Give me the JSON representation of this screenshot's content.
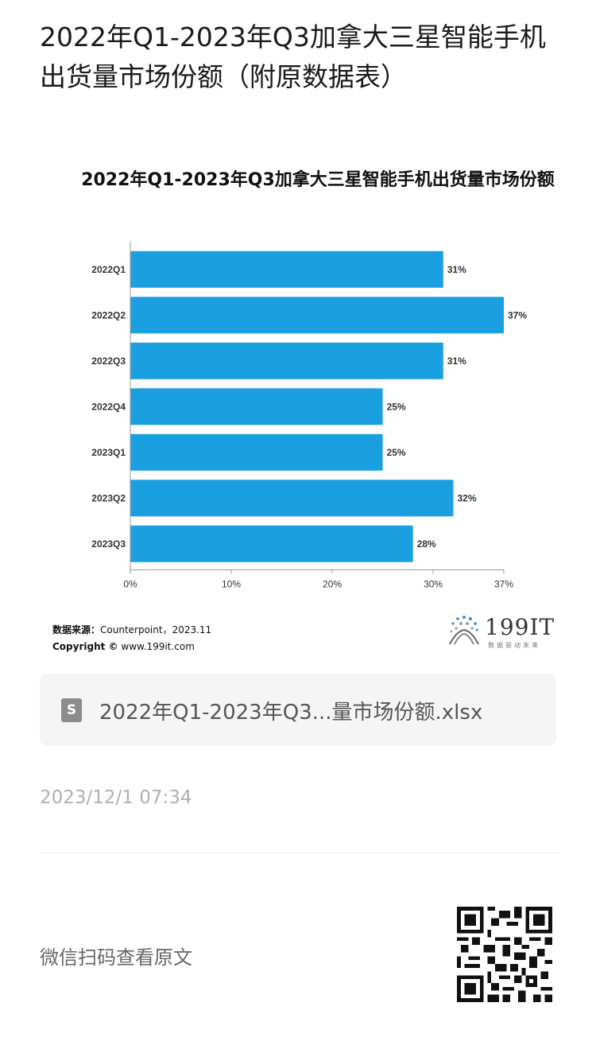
{
  "article": {
    "title": "2022年Q1-2023年Q3加拿大三星智能手机出货量市场份额（附原数据表）"
  },
  "chart": {
    "footer_source_label": "数据来源：",
    "footer_source_value": "Counterpoint，2023.11",
    "footer_copyright_label": "Copyright ©",
    "footer_copyright_value": "www.199it.com",
    "logo_text": "199IT",
    "logo_sub": "数据驱动未来"
  },
  "chart_data": {
    "type": "bar",
    "orientation": "horizontal",
    "title": "2022年Q1-2023年Q3加拿大三星智能手机出货量市场份额",
    "categories": [
      "2022Q1",
      "2022Q2",
      "2022Q3",
      "2022Q4",
      "2023Q1",
      "2023Q2",
      "2023Q3"
    ],
    "values": [
      31,
      37,
      31,
      25,
      25,
      32,
      28
    ],
    "value_labels": [
      "31%",
      "37%",
      "31%",
      "25%",
      "25%",
      "32%",
      "28%"
    ],
    "xticks": [
      "0%",
      "10%",
      "20%",
      "30%",
      "37%"
    ],
    "xtick_values": [
      0,
      10,
      20,
      30,
      37
    ],
    "xlim": [
      0,
      37
    ],
    "xlabel": "",
    "ylabel": "",
    "bar_color": "#1a9fe0",
    "grid": false
  },
  "attachment": {
    "icon": "spreadsheet-file-icon",
    "icon_letter": "S",
    "file_name": "2022年Q1-2023年Q3...量市场份额.xlsx"
  },
  "meta": {
    "timestamp": "2023/12/1 07:34",
    "scan_prompt": "微信扫码查看原文"
  }
}
